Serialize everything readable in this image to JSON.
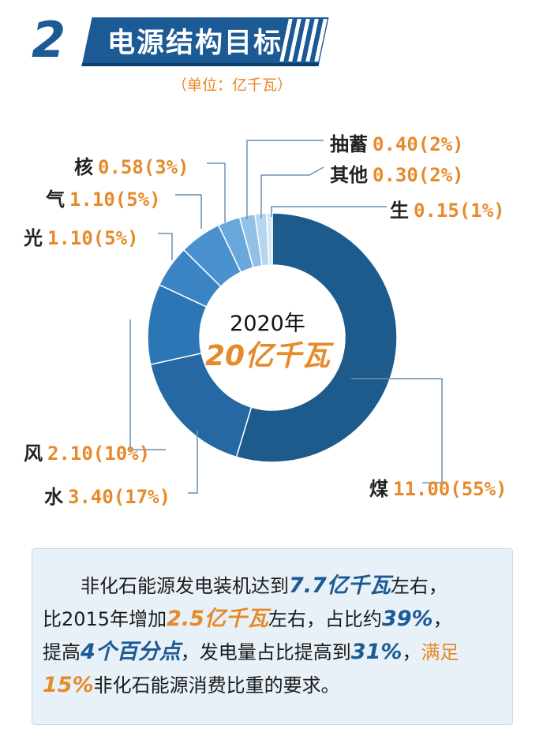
{
  "header": {
    "number": "2",
    "title": "电源结构目标",
    "unit": "（单位：亿千瓦）"
  },
  "center": {
    "year": "2020年",
    "total": "20亿千瓦"
  },
  "chart_data": {
    "type": "pie",
    "donut": true,
    "total": 20,
    "slices": [
      {
        "name": "煤",
        "value": 11.0,
        "share": "55%",
        "label": "11.00(55%)",
        "color": "#1d5b8c"
      },
      {
        "name": "水",
        "value": 3.4,
        "share": "17%",
        "label": "3.40(17%)",
        "color": "#2568a3"
      },
      {
        "name": "风",
        "value": 2.1,
        "share": "10%",
        "label": "2.10(10%)",
        "color": "#2d76b6"
      },
      {
        "name": "光",
        "value": 1.1,
        "share": "5%",
        "label": "1.10(5%)",
        "color": "#3a84c4"
      },
      {
        "name": "气",
        "value": 1.1,
        "share": "5%",
        "label": "1.10(5%)",
        "color": "#4a92cf"
      },
      {
        "name": "核",
        "value": 0.58,
        "share": "3%",
        "label": "0.58(3%)",
        "color": "#6aa7da"
      },
      {
        "name": "抽蓄",
        "value": 0.4,
        "share": "2%",
        "label": "0.40(2%)",
        "color": "#93c0e6"
      },
      {
        "name": "其他",
        "value": 0.3,
        "share": "2%",
        "label": "0.30(2%)",
        "color": "#b6d5ee"
      },
      {
        "name": "生",
        "value": 0.15,
        "share": "1%",
        "label": "0.15(1%)",
        "color": "#d6e8f6"
      }
    ]
  },
  "summary": {
    "s1": "非化石能源发电装机达到",
    "h1": "7.7亿千瓦",
    "s2": "左右，",
    "s3": "比2015年增加",
    "h2": "2.5亿千瓦",
    "s4": "左右，占比约",
    "h3": "39%",
    "s5": "，",
    "s6": "提高",
    "h4": "4个百分点",
    "s7": "，发电量占比提高到",
    "h5": "31%",
    "s8": "，",
    "s9": "满足",
    "h6": "15%",
    "s10": "非化石能源消费比重的要求。"
  },
  "colors": {
    "brand_blue": "#1b5a94",
    "accent_orange": "#e68a2a"
  }
}
